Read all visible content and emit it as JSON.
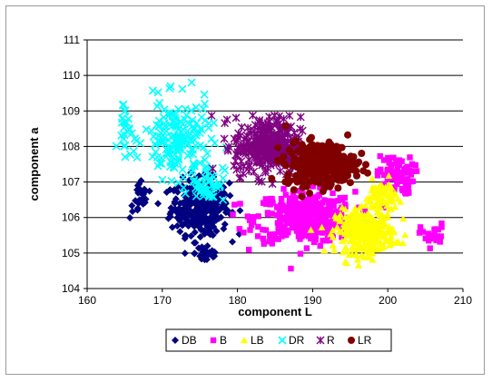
{
  "chart_data": {
    "type": "scatter",
    "title": "",
    "xlabel": "component L",
    "ylabel": "component a",
    "xlim": [
      160,
      210
    ],
    "ylim": [
      104,
      111
    ],
    "xticks": [
      "160",
      "170",
      "180",
      "190",
      "200",
      "210"
    ],
    "yticks": [
      "104",
      "105",
      "106",
      "107",
      "108",
      "109",
      "110",
      "111"
    ],
    "grid": "horizontal",
    "legend_position": "bottom",
    "series": [
      {
        "name": "DB",
        "marker": "diamond",
        "color": "#000080",
        "clusters": [
          {
            "x": 175,
            "y": 106.3,
            "sx": 3.5,
            "sy": 0.7,
            "n": 320
          },
          {
            "x": 167,
            "y": 106.5,
            "sx": 1.2,
            "sy": 0.5,
            "n": 25
          },
          {
            "x": 176,
            "y": 105.0,
            "sx": 1.5,
            "sy": 0.3,
            "n": 30
          }
        ]
      },
      {
        "name": "B",
        "marker": "square",
        "color": "#ff00ff",
        "clusters": [
          {
            "x": 189,
            "y": 106.0,
            "sx": 6.0,
            "sy": 0.65,
            "n": 380
          },
          {
            "x": 201,
            "y": 107.2,
            "sx": 2.2,
            "sy": 0.5,
            "n": 70
          },
          {
            "x": 206,
            "y": 105.5,
            "sx": 1.5,
            "sy": 0.3,
            "n": 25
          }
        ]
      },
      {
        "name": "LB",
        "marker": "triangle",
        "color": "#ffff00",
        "clusters": [
          {
            "x": 197,
            "y": 105.6,
            "sx": 3.5,
            "sy": 0.55,
            "n": 320
          },
          {
            "x": 199,
            "y": 106.6,
            "sx": 1.8,
            "sy": 0.4,
            "n": 70
          }
        ]
      },
      {
        "name": "DR",
        "marker": "x",
        "color": "#00ffff",
        "clusters": [
          {
            "x": 172,
            "y": 108.2,
            "sx": 4.0,
            "sy": 1.0,
            "n": 170
          },
          {
            "x": 176,
            "y": 107.0,
            "sx": 2.0,
            "sy": 0.5,
            "n": 50
          },
          {
            "x": 165,
            "y": 108.6,
            "sx": 0.8,
            "sy": 0.7,
            "n": 25
          }
        ]
      },
      {
        "name": "R",
        "marker": "asterisk",
        "color": "#800080",
        "clusters": [
          {
            "x": 184,
            "y": 108.0,
            "sx": 4.0,
            "sy": 0.75,
            "n": 320
          }
        ]
      },
      {
        "name": "LR",
        "marker": "circle",
        "color": "#800000",
        "clusters": [
          {
            "x": 191,
            "y": 107.5,
            "sx": 4.2,
            "sy": 0.55,
            "n": 340
          }
        ]
      }
    ]
  }
}
